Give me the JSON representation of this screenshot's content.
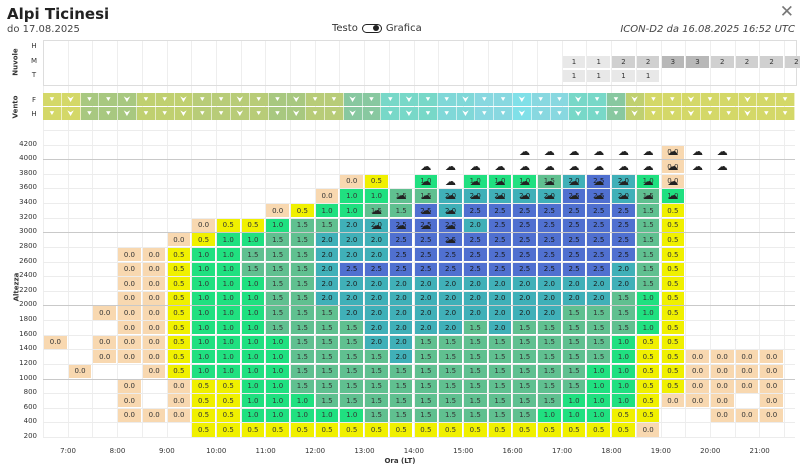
{
  "header": {
    "title": "Alpi Ticinesi",
    "subtitle": "do 17.08.2025",
    "toggle_text": "Testo",
    "toggle_graphic": "Grafica",
    "model": "ICON-D2 da 16.08.2025 16:52 UTC",
    "close_icon": "close-icon"
  },
  "clouds": {
    "label": "Nuvole",
    "rows": [
      "H",
      "M",
      "T"
    ],
    "values": {
      "M": {
        "21": "1",
        "22": "1",
        "23": "2",
        "24": "2",
        "25": "3",
        "26": "3",
        "27": "2",
        "28": "2",
        "29": "2",
        "30": "2"
      },
      "T": {
        "21": "1",
        "22": "1",
        "23": "1",
        "24": "1"
      }
    }
  },
  "wind": {
    "label": "Vento",
    "rows": [
      "F",
      "H"
    ],
    "icon": "wind-arrow-icon",
    "colors": [
      "#d4d868",
      "#d4d868",
      "#a8c880",
      "#a8c880",
      "#a8c880",
      "#c0d070",
      "#c0d070",
      "#c0d070",
      "#b8cc78",
      "#b8cc78",
      "#b8cc78",
      "#b8cc78",
      "#a8c880",
      "#a8c880",
      "#b8cc78",
      "#b8cc78",
      "#88c8a0",
      "#88c8a0",
      "#78d8c8",
      "#78d8c8",
      "#78d8c8",
      "#80d8d8",
      "#80d8d8",
      "#88d8e0",
      "#88d8e0",
      "#80e0e8",
      "#88d8e0",
      "#88d8e0",
      "#78d8c8",
      "#78d8c8",
      "#88c8a0",
      "#c0d070",
      "#d4d868",
      "#d4d868",
      "#d4d868",
      "#d4d868",
      "#d4d868",
      "#d4d868",
      "#d4d868",
      "#d4d868"
    ]
  },
  "thermals": {
    "ylabel": "Altezza",
    "xlabel": "Ora (LT)",
    "y_ticks": [
      "4200",
      "4000",
      "3800",
      "3600",
      "3400",
      "3200",
      "3000",
      "2800",
      "2600",
      "2400",
      "2200",
      "2000",
      "1800",
      "1600",
      "1400",
      "1200",
      "1000",
      "800",
      "600",
      "400",
      "200"
    ],
    "x_ticks": [
      "7:00",
      "8:00",
      "9:00",
      "10:00",
      "11:00",
      "12:00",
      "13:00",
      "14:00",
      "15:00",
      "16:00",
      "17:00",
      "18:00",
      "19:00",
      "20:00",
      "21:00"
    ],
    "cloud_icon": "cloud-icon",
    "cloud_cells": [
      "1,19",
      "1,20",
      "1,21",
      "1,22",
      "1,23",
      "1,24",
      "1,25",
      "1,26",
      "1,27",
      "2,15",
      "2,16",
      "2,17",
      "2,18",
      "2,19",
      "2,20",
      "2,21",
      "2,22",
      "2,23",
      "2,24",
      "2,25",
      "2,26",
      "2,27",
      "3,15",
      "3,16",
      "3,17",
      "3,18",
      "3,19",
      "3,20",
      "3,21",
      "3,22",
      "3,23",
      "3,24",
      "3,25",
      "4,14",
      "4,15",
      "4,16",
      "4,17",
      "4,18",
      "4,19",
      "4,20",
      "4,21",
      "4,22",
      "4,23",
      "4,24",
      "4,25",
      "5,13",
      "5,15",
      "5,16",
      "6,13",
      "6,14",
      "6,15",
      "6,16",
      "7,16"
    ],
    "rows": [
      {
        "alt": "4300",
        "cells": {}
      },
      {
        "alt": "4200",
        "cells": {
          "25": "0.0"
        }
      },
      {
        "alt": "4000",
        "cells": {
          "25": "0.0"
        }
      },
      {
        "alt": "3800",
        "cells": {
          "12": "0.0",
          "13": "0.5",
          "15": "1.0",
          "17": "1.0",
          "18": "1.0",
          "19": "1.0",
          "20": "1.5",
          "21": "2.0",
          "22": "2.5",
          "23": "2.0",
          "24": "1.0",
          "25": "0.0"
        }
      },
      {
        "alt": "3600",
        "cells": {
          "11": "0.0",
          "12": "1.0",
          "13": "1.0",
          "14": "1.5",
          "15": "1.5",
          "16": "2.0",
          "17": "2.0",
          "18": "2.0",
          "19": "2.0",
          "20": "2.0",
          "21": "2.5",
          "22": "2.5",
          "23": "2.0",
          "24": "1.5",
          "25": "1.0"
        }
      },
      {
        "alt": "3400",
        "cells": {
          "9": "0.0",
          "10": "0.5",
          "11": "1.0",
          "12": "1.0",
          "13": "1.5",
          "14": "1.5",
          "15": "2.5",
          "16": "2.0",
          "17": "2.5",
          "18": "2.5",
          "19": "2.5",
          "20": "2.5",
          "21": "2.5",
          "22": "2.5",
          "23": "2.5",
          "24": "1.5",
          "25": "0.5"
        }
      },
      {
        "alt": "3200",
        "cells": {
          "6": "0.0",
          "7": "0.5",
          "8": "0.5",
          "9": "1.0",
          "10": "1.5",
          "11": "1.5",
          "12": "2.0",
          "13": "2.0",
          "14": "2.5",
          "15": "2.5",
          "16": "2.5",
          "17": "2.0",
          "18": "2.5",
          "19": "2.5",
          "20": "2.5",
          "21": "2.5",
          "22": "2.5",
          "23": "2.5",
          "24": "1.5",
          "25": "0.5"
        }
      },
      {
        "alt": "3000",
        "cells": {
          "5": "0.0",
          "6": "0.5",
          "7": "1.0",
          "8": "1.0",
          "9": "1.5",
          "10": "1.5",
          "11": "2.0",
          "12": "2.0",
          "13": "2.0",
          "14": "2.5",
          "15": "2.5",
          "16": "2.5",
          "17": "2.5",
          "18": "2.5",
          "19": "2.5",
          "20": "2.5",
          "21": "2.5",
          "22": "2.5",
          "23": "2.5",
          "24": "1.5",
          "25": "0.5"
        }
      },
      {
        "alt": "2800",
        "cells": {
          "3": "0.0",
          "4": "0.0",
          "5": "0.5",
          "6": "1.0",
          "7": "1.0",
          "8": "1.5",
          "9": "1.5",
          "10": "1.5",
          "11": "2.0",
          "12": "2.0",
          "13": "2.0",
          "14": "2.5",
          "15": "2.5",
          "16": "2.5",
          "17": "2.5",
          "18": "2.5",
          "19": "2.5",
          "20": "2.5",
          "21": "2.5",
          "22": "2.5",
          "23": "2.5",
          "24": "1.5",
          "25": "0.5"
        }
      },
      {
        "alt": "2600",
        "cells": {
          "3": "0.0",
          "4": "0.0",
          "5": "0.5",
          "6": "1.0",
          "7": "1.0",
          "8": "1.5",
          "9": "1.5",
          "10": "1.5",
          "11": "2.0",
          "12": "2.5",
          "13": "2.5",
          "14": "2.5",
          "15": "2.5",
          "16": "2.5",
          "17": "2.5",
          "18": "2.5",
          "19": "2.5",
          "20": "2.5",
          "21": "2.5",
          "22": "2.5",
          "23": "2.0",
          "24": "1.5",
          "25": "0.5"
        }
      },
      {
        "alt": "2400",
        "cells": {
          "3": "0.0",
          "4": "0.0",
          "5": "0.5",
          "6": "1.0",
          "7": "1.0",
          "8": "1.0",
          "9": "1.5",
          "10": "1.5",
          "11": "2.0",
          "12": "2.0",
          "13": "2.0",
          "14": "2.0",
          "15": "2.0",
          "16": "2.0",
          "17": "2.0",
          "18": "2.0",
          "19": "2.0",
          "20": "2.0",
          "21": "2.0",
          "22": "2.0",
          "23": "2.0",
          "24": "1.5",
          "25": "0.5"
        }
      },
      {
        "alt": "2200",
        "cells": {
          "3": "0.0",
          "4": "0.0",
          "5": "0.5",
          "6": "1.0",
          "7": "1.0",
          "8": "1.0",
          "9": "1.5",
          "10": "1.5",
          "11": "2.0",
          "12": "2.0",
          "13": "2.0",
          "14": "2.0",
          "15": "2.0",
          "16": "2.0",
          "17": "2.0",
          "18": "2.0",
          "19": "2.0",
          "20": "2.0",
          "21": "2.0",
          "22": "2.0",
          "23": "1.5",
          "24": "1.0",
          "25": "0.5"
        }
      },
      {
        "alt": "2000",
        "cells": {
          "2": "0.0",
          "3": "0.0",
          "4": "0.0",
          "5": "0.5",
          "6": "1.0",
          "7": "1.0",
          "8": "1.0",
          "9": "1.5",
          "10": "1.5",
          "11": "1.5",
          "12": "2.0",
          "13": "2.0",
          "14": "2.0",
          "15": "2.0",
          "16": "2.0",
          "17": "2.0",
          "18": "2.0",
          "19": "2.0",
          "20": "2.0",
          "21": "1.5",
          "22": "1.5",
          "23": "1.5",
          "24": "1.0",
          "25": "0.5"
        }
      },
      {
        "alt": "1800",
        "cells": {
          "3": "0.0",
          "4": "0.0",
          "5": "0.5",
          "6": "1.0",
          "7": "1.0",
          "8": "1.0",
          "9": "1.5",
          "10": "1.5",
          "11": "1.5",
          "12": "1.5",
          "13": "2.0",
          "14": "2.0",
          "15": "2.0",
          "16": "2.0",
          "17": "1.5",
          "18": "2.0",
          "19": "1.5",
          "20": "1.5",
          "21": "1.5",
          "22": "1.5",
          "23": "1.5",
          "24": "1.0",
          "25": "0.5"
        }
      },
      {
        "alt": "1600",
        "cells": {
          "0": "0.0",
          "2": "0.0",
          "3": "0.0",
          "4": "0.0",
          "5": "0.5",
          "6": "1.0",
          "7": "1.0",
          "8": "1.0",
          "9": "1.0",
          "10": "1.5",
          "11": "1.5",
          "12": "1.5",
          "13": "2.0",
          "14": "2.0",
          "15": "1.5",
          "16": "1.5",
          "17": "1.5",
          "18": "1.5",
          "19": "1.5",
          "20": "1.5",
          "21": "1.5",
          "22": "1.5",
          "23": "1.0",
          "24": "0.5",
          "25": "0.5"
        }
      },
      {
        "alt": "1400",
        "cells": {
          "2": "0.0",
          "3": "0.0",
          "4": "0.0",
          "5": "0.5",
          "6": "1.0",
          "7": "1.0",
          "8": "1.0",
          "9": "1.0",
          "10": "1.5",
          "11": "1.5",
          "12": "1.5",
          "13": "1.5",
          "14": "2.0",
          "15": "1.5",
          "16": "1.5",
          "17": "1.5",
          "18": "1.5",
          "19": "1.5",
          "20": "1.5",
          "21": "1.5",
          "22": "1.5",
          "23": "1.0",
          "24": "0.5",
          "25": "0.5",
          "26": "0.0",
          "27": "0.0",
          "28": "0.0",
          "29": "0.0"
        }
      },
      {
        "alt": "1200",
        "cells": {
          "1": "0.0",
          "4": "0.0",
          "5": "0.5",
          "6": "1.0",
          "7": "1.0",
          "8": "1.0",
          "9": "1.0",
          "10": "1.5",
          "11": "1.5",
          "12": "1.5",
          "13": "1.5",
          "14": "1.5",
          "15": "1.5",
          "16": "1.5",
          "17": "1.5",
          "18": "1.5",
          "19": "1.5",
          "20": "1.5",
          "21": "1.5",
          "22": "1.0",
          "23": "1.0",
          "24": "0.5",
          "25": "0.5",
          "26": "0.0",
          "27": "0.0",
          "28": "0.0",
          "29": "0.0"
        }
      },
      {
        "alt": "1000",
        "cells": {
          "3": "0.0",
          "5": "0.0",
          "6": "0.5",
          "7": "0.5",
          "8": "1.0",
          "9": "1.0",
          "10": "1.5",
          "11": "1.5",
          "12": "1.5",
          "13": "1.5",
          "14": "1.5",
          "15": "1.5",
          "16": "1.5",
          "17": "1.5",
          "18": "1.5",
          "19": "1.5",
          "20": "1.5",
          "21": "1.5",
          "22": "1.0",
          "23": "1.0",
          "24": "0.5",
          "25": "0.5",
          "26": "0.0",
          "27": "0.0",
          "28": "0.0",
          "29": "0.0"
        }
      },
      {
        "alt": "800",
        "cells": {
          "3": "0.0",
          "5": "0.0",
          "6": "0.5",
          "7": "0.5",
          "8": "1.0",
          "9": "1.0",
          "10": "1.0",
          "11": "1.5",
          "12": "1.5",
          "13": "1.5",
          "14": "1.5",
          "15": "1.5",
          "16": "1.5",
          "17": "1.5",
          "18": "1.5",
          "19": "1.5",
          "20": "1.5",
          "21": "1.0",
          "22": "1.0",
          "23": "1.0",
          "24": "0.5",
          "25": "0.0",
          "26": "0.0",
          "27": "0.0",
          "29": "0.0"
        }
      },
      {
        "alt": "600",
        "cells": {
          "3": "0.0",
          "4": "0.0",
          "5": "0.0",
          "6": "0.5",
          "7": "0.5",
          "8": "1.0",
          "9": "1.0",
          "10": "1.0",
          "11": "1.0",
          "12": "1.0",
          "13": "1.5",
          "14": "1.5",
          "15": "1.5",
          "16": "1.5",
          "17": "1.5",
          "18": "1.5",
          "19": "1.5",
          "20": "1.0",
          "21": "1.0",
          "22": "1.0",
          "23": "0.5",
          "24": "0.5",
          "27": "0.0",
          "28": "0.0",
          "29": "0.0"
        }
      },
      {
        "alt": "400",
        "cells": {
          "6": "0.5",
          "7": "0.5",
          "8": "0.5",
          "9": "0.5",
          "10": "0.5",
          "11": "0.5",
          "12": "0.5",
          "13": "0.5",
          "14": "0.5",
          "15": "0.5",
          "16": "0.5",
          "17": "0.5",
          "18": "0.5",
          "19": "0.5",
          "20": "0.5",
          "21": "0.5",
          "22": "0.5",
          "23": "0.5",
          "24": "0.0"
        }
      }
    ],
    "colors": {
      "0.0": "#f8d8b0",
      "0.5": "#f0f000",
      "1.0": "#20e080",
      "1.5": "#60c090",
      "2.0": "#40b0b8",
      "2.5": "#5070d0"
    }
  }
}
